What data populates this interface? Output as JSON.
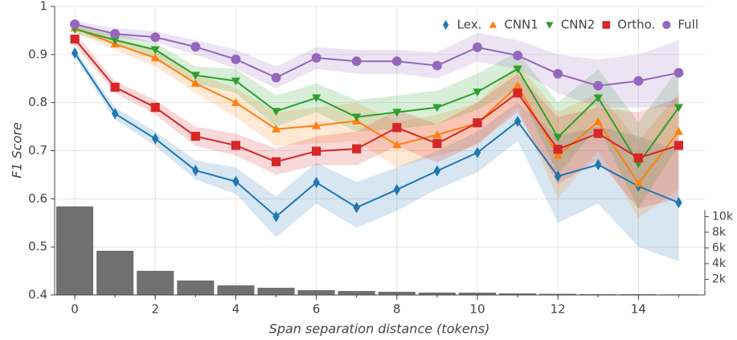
{
  "chart_data": {
    "type": "line",
    "xlabel": "Span separation distance (tokens)",
    "ylabel": "F1 Score",
    "x": [
      0,
      1,
      2,
      3,
      4,
      5,
      6,
      7,
      8,
      9,
      10,
      11,
      12,
      13,
      14,
      15
    ],
    "xlim": [
      -0.5,
      15.65
    ],
    "xticks": [
      0,
      2,
      4,
      6,
      8,
      10,
      12,
      14
    ],
    "ylim": [
      0.4,
      1.0
    ],
    "yticks": [
      0.4,
      0.5,
      0.6,
      0.7,
      0.8,
      0.9,
      1
    ],
    "y2lim": [
      0,
      36800
    ],
    "y2ticks": [
      {
        "value": 2000,
        "label": "2k"
      },
      {
        "value": 4000,
        "label": "4k"
      },
      {
        "value": 6000,
        "label": "6k"
      },
      {
        "value": 8000,
        "label": "8k"
      },
      {
        "value": 10000,
        "label": "10k"
      }
    ],
    "grid": true,
    "legend": "top-right",
    "histogram": {
      "axis": "y2",
      "color": "#707070",
      "values": [
        11300,
        5640,
        3080,
        1850,
        1230,
        920,
        620,
        510,
        410,
        310,
        300,
        200,
        150,
        100,
        100,
        80
      ]
    },
    "series": [
      {
        "name": "Lex.",
        "color": "#1f77b4",
        "marker": "diamond",
        "values": [
          0.903,
          0.777,
          0.725,
          0.659,
          0.636,
          0.563,
          0.634,
          0.582,
          0.619,
          0.658,
          0.696,
          0.761,
          0.647,
          0.671,
          0.626,
          0.592
        ],
        "lower": [
          0.895,
          0.765,
          0.71,
          0.64,
          0.61,
          0.52,
          0.59,
          0.54,
          0.575,
          0.62,
          0.655,
          0.72,
          0.55,
          0.59,
          0.5,
          0.47
        ],
        "upper": [
          0.91,
          0.79,
          0.74,
          0.68,
          0.665,
          0.605,
          0.675,
          0.635,
          0.665,
          0.7,
          0.74,
          0.8,
          0.73,
          0.75,
          0.73,
          0.7
        ]
      },
      {
        "name": "CNN1",
        "color": "#ff7f0e",
        "marker": "triangle",
        "values": [
          0.955,
          0.922,
          0.893,
          0.84,
          0.8,
          0.745,
          0.752,
          0.762,
          0.712,
          0.733,
          0.757,
          0.835,
          0.69,
          0.76,
          0.632,
          0.74
        ],
        "lower": [
          0.945,
          0.91,
          0.875,
          0.82,
          0.77,
          0.71,
          0.715,
          0.72,
          0.665,
          0.69,
          0.71,
          0.79,
          0.6,
          0.7,
          0.56,
          0.62
        ],
        "upper": [
          0.965,
          0.935,
          0.91,
          0.86,
          0.83,
          0.78,
          0.79,
          0.8,
          0.76,
          0.775,
          0.8,
          0.88,
          0.78,
          0.82,
          0.72,
          0.82
        ]
      },
      {
        "name": "CNN2",
        "color": "#2ca02c",
        "marker": "inverted-triangle",
        "values": [
          0.953,
          0.93,
          0.91,
          0.857,
          0.845,
          0.782,
          0.81,
          0.77,
          0.78,
          0.79,
          0.822,
          0.87,
          0.728,
          0.81,
          0.673,
          0.79
        ],
        "lower": [
          0.945,
          0.92,
          0.895,
          0.84,
          0.82,
          0.75,
          0.78,
          0.74,
          0.745,
          0.755,
          0.785,
          0.83,
          0.65,
          0.75,
          0.58,
          0.71
        ],
        "upper": [
          0.962,
          0.945,
          0.925,
          0.875,
          0.87,
          0.815,
          0.84,
          0.805,
          0.815,
          0.825,
          0.86,
          0.905,
          0.8,
          0.87,
          0.76,
          0.87
        ]
      },
      {
        "name": "Ortho.",
        "color": "#d62728",
        "marker": "square",
        "values": [
          0.932,
          0.832,
          0.79,
          0.73,
          0.711,
          0.677,
          0.699,
          0.704,
          0.748,
          0.715,
          0.758,
          0.82,
          0.703,
          0.736,
          0.685,
          0.711
        ],
        "lower": [
          0.92,
          0.82,
          0.775,
          0.71,
          0.69,
          0.65,
          0.67,
          0.67,
          0.71,
          0.675,
          0.715,
          0.78,
          0.63,
          0.68,
          0.58,
          0.6
        ],
        "upper": [
          0.945,
          0.845,
          0.805,
          0.75,
          0.735,
          0.705,
          0.73,
          0.74,
          0.785,
          0.755,
          0.8,
          0.86,
          0.77,
          0.79,
          0.78,
          0.81
        ]
      },
      {
        "name": "Full",
        "color": "#9467bd",
        "marker": "circle",
        "values": [
          0.963,
          0.943,
          0.936,
          0.916,
          0.89,
          0.852,
          0.893,
          0.886,
          0.886,
          0.877,
          0.915,
          0.898,
          0.86,
          0.835,
          0.845,
          0.862
        ],
        "lower": [
          0.955,
          0.935,
          0.925,
          0.9,
          0.87,
          0.83,
          0.87,
          0.86,
          0.86,
          0.85,
          0.885,
          0.87,
          0.82,
          0.79,
          0.79,
          0.79
        ],
        "upper": [
          0.97,
          0.955,
          0.948,
          0.93,
          0.91,
          0.875,
          0.915,
          0.91,
          0.91,
          0.905,
          0.945,
          0.93,
          0.9,
          0.89,
          0.9,
          0.93
        ]
      }
    ]
  }
}
